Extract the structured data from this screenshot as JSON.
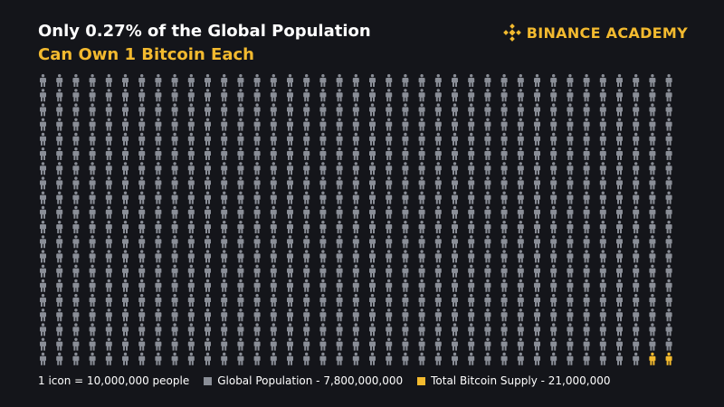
{
  "header": {
    "title_line1": "Only 0.27% of the Global Population",
    "title_line2": "Can Own 1 Bitcoin Each",
    "brand": "BINANCE ACADEMY"
  },
  "colors": {
    "background": "#14151a",
    "population": "#8a8e97",
    "bitcoin": "#f3ba2f",
    "title_accent": "#f3ba2f"
  },
  "chart_data": {
    "type": "pictogram",
    "rows": 20,
    "columns": 39,
    "total_icons": 780,
    "unit_label": "1 icon = 10,000,000 people",
    "series": [
      {
        "name": "Global Population - 7,800,000,000",
        "value": 7800000000,
        "icons": 778,
        "color": "#8a8e97"
      },
      {
        "name": "Total Bitcoin Supply - 21,000,000",
        "value": 21000000,
        "icons": 2,
        "color": "#f3ba2f"
      }
    ],
    "legend_position": "bottom-left"
  }
}
